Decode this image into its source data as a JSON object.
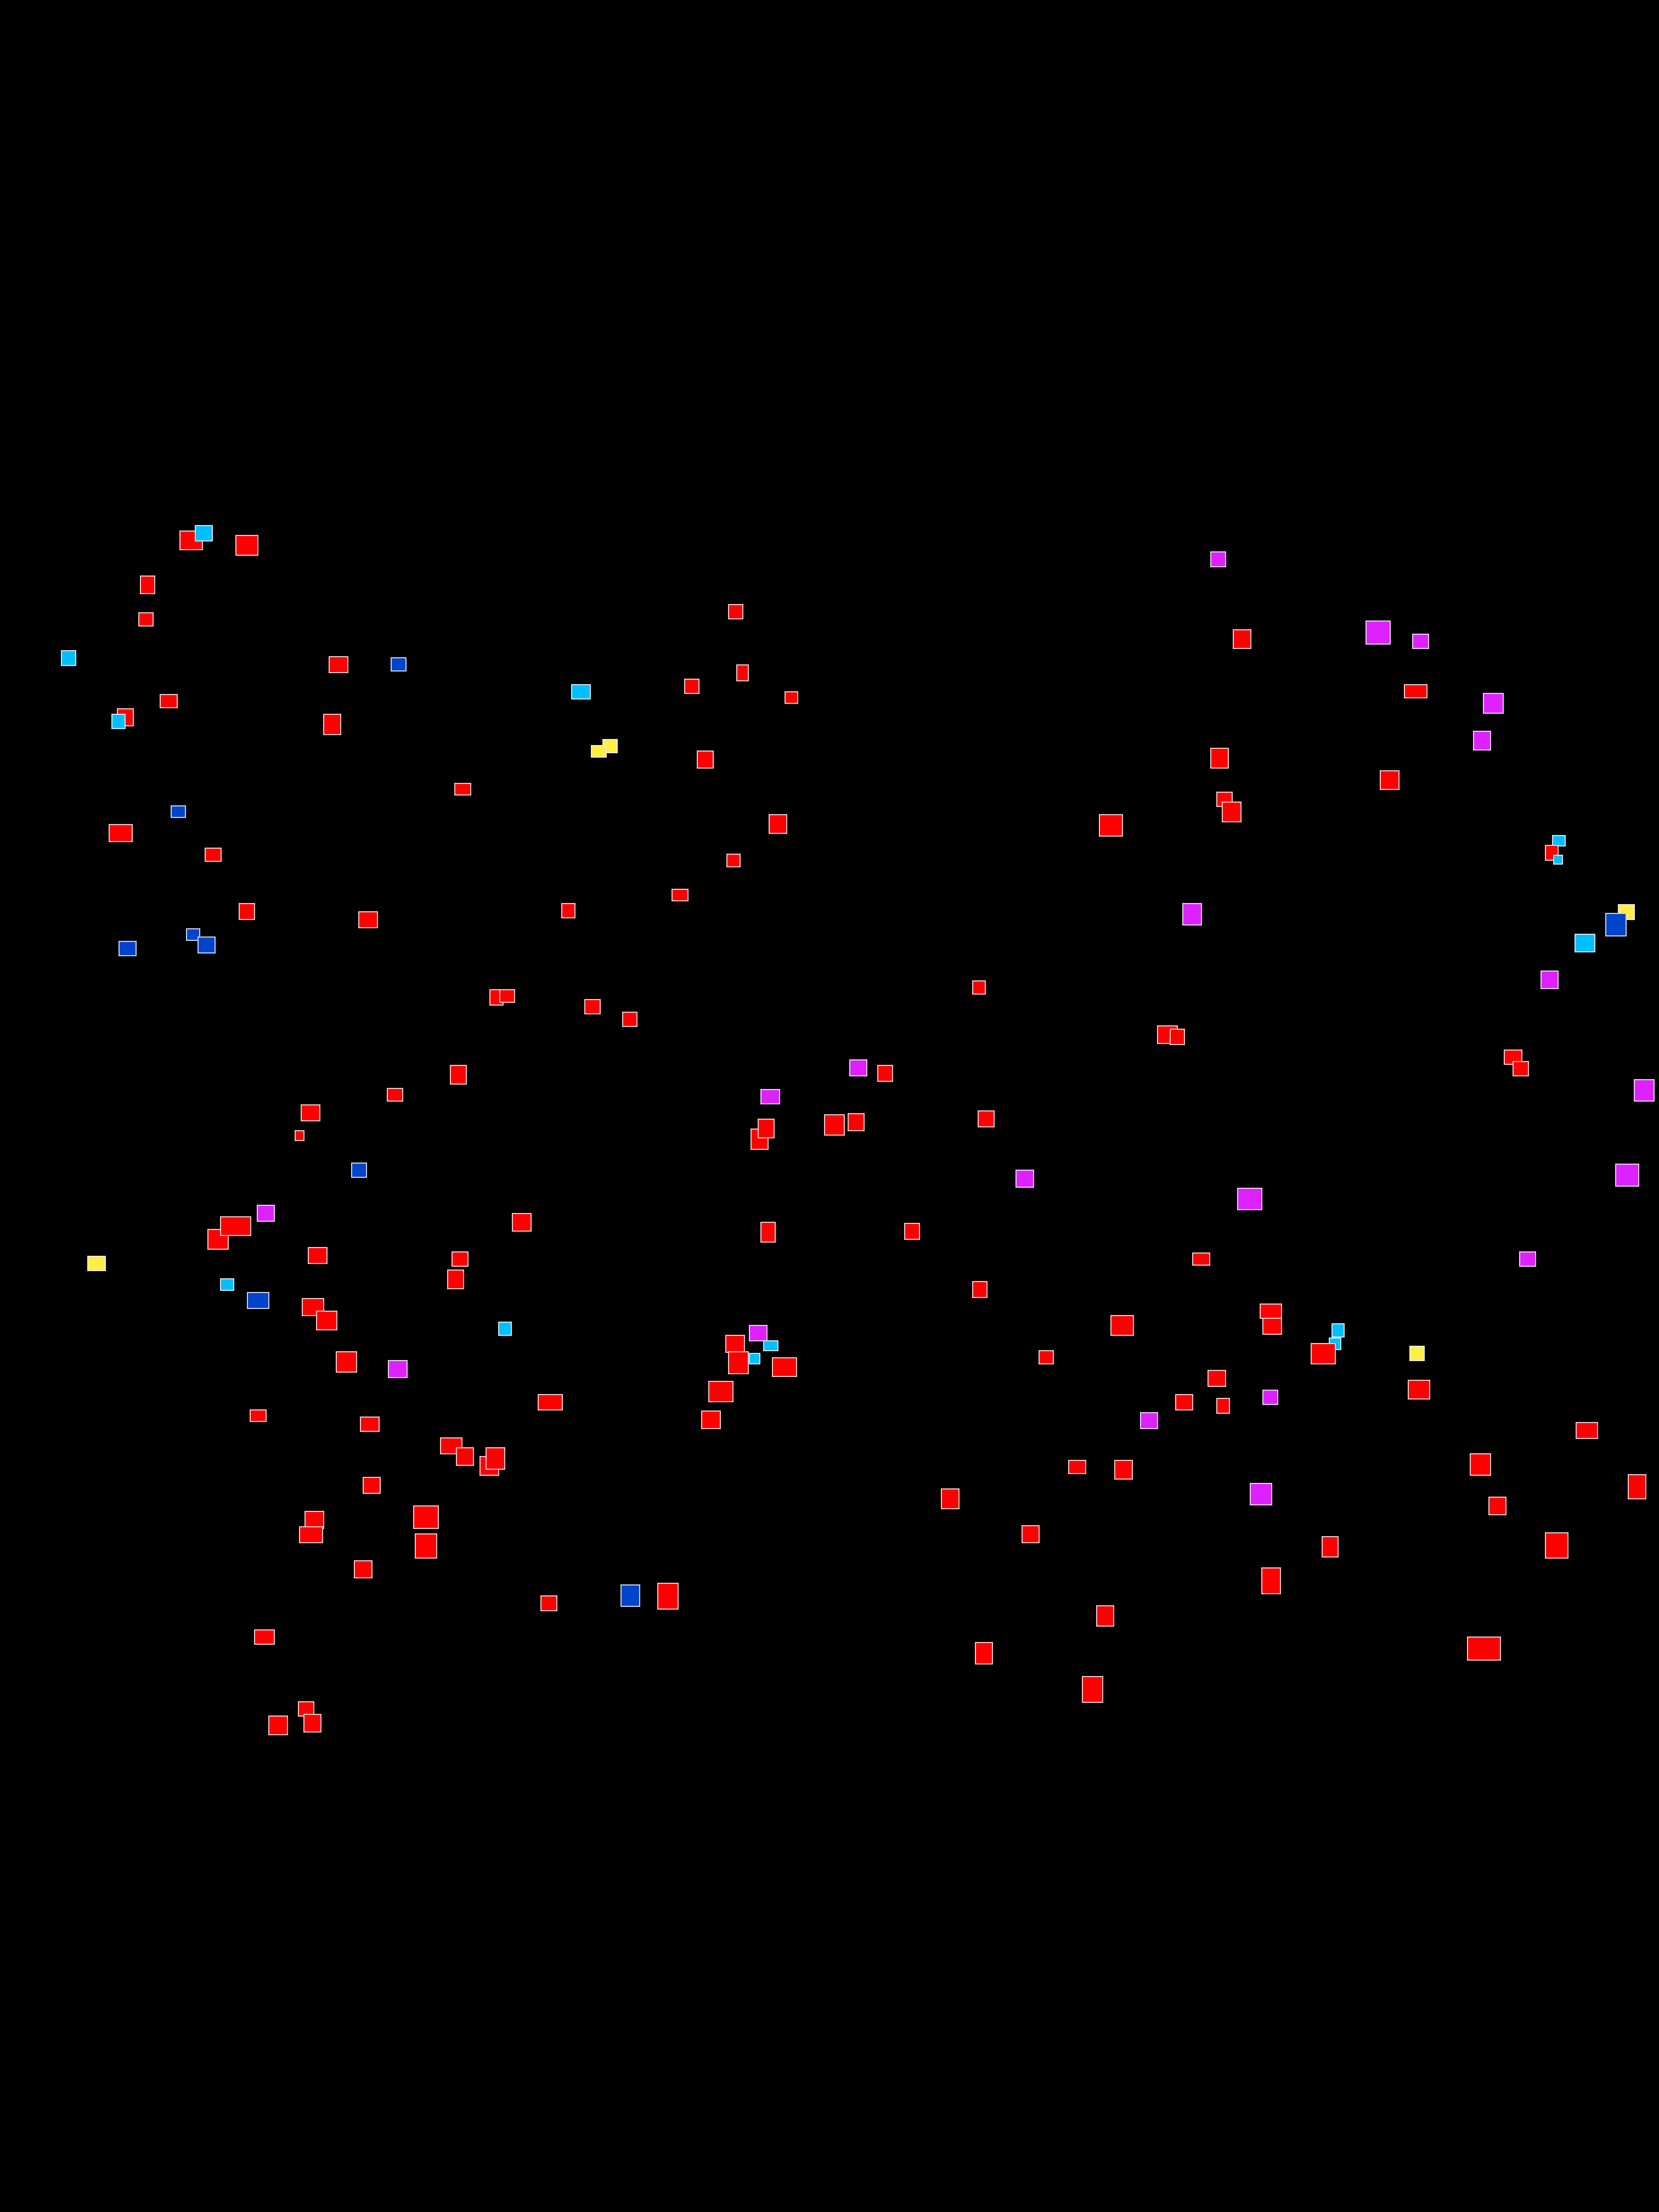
{
  "background": "#000000",
  "colors": {
    "red": "#ff0000",
    "cyan": "#00bfff",
    "blue": "#0044cc",
    "magenta": "#dd22ff",
    "yellow": "#ffee44"
  }
}
